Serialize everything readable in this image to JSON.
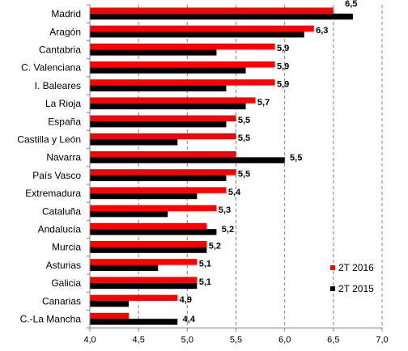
{
  "chart_data": {
    "type": "bar",
    "orientation": "horizontal",
    "categories": [
      "Madrid",
      "Aragón",
      "Cantabria",
      "C. Valenciana",
      "I. Baleares",
      "La Rioja",
      "España",
      "Castilla y León",
      "Navarra",
      "País Vasco",
      "Extremadura",
      "Cataluña",
      "Andalucía",
      "Murcia",
      "Asturias",
      "Galicia",
      "Canarias",
      "C.-La Mancha"
    ],
    "series": [
      {
        "name": "2T 2016",
        "color": "#ff0000",
        "values": [
          6.5,
          6.3,
          5.9,
          5.9,
          5.9,
          5.7,
          5.5,
          5.5,
          5.5,
          5.5,
          5.4,
          5.3,
          5.2,
          5.2,
          5.1,
          5.1,
          4.9,
          4.4
        ]
      },
      {
        "name": "2T 2015",
        "color": "#000000",
        "values": [
          6.7,
          6.2,
          5.3,
          5.6,
          5.4,
          5.6,
          5.4,
          4.9,
          6.0,
          5.4,
          5.1,
          4.8,
          5.3,
          5.2,
          4.7,
          5.1,
          4.4,
          4.9
        ]
      }
    ],
    "data_labels": [
      "6,5",
      "6,3",
      "5,9",
      "5,9",
      "5,9",
      "5,7",
      "5,5",
      "5,5",
      "5,5",
      "5,5",
      "5,4",
      "5,3",
      "5,2",
      "5,2",
      "5,1",
      "5,1",
      "4,9",
      "4,4"
    ],
    "xticks": [
      4.0,
      4.5,
      5.0,
      5.5,
      6.0,
      6.5,
      7.0
    ],
    "xtick_labels": [
      "4,0",
      "4,5",
      "5,0",
      "5,5",
      "6,0",
      "6,5",
      "7,0"
    ],
    "xlim": [
      4.0,
      7.0
    ],
    "grid": "vertical-dashed",
    "legend": "bottom-right",
    "title": "",
    "xlabel": "",
    "ylabel": ""
  }
}
